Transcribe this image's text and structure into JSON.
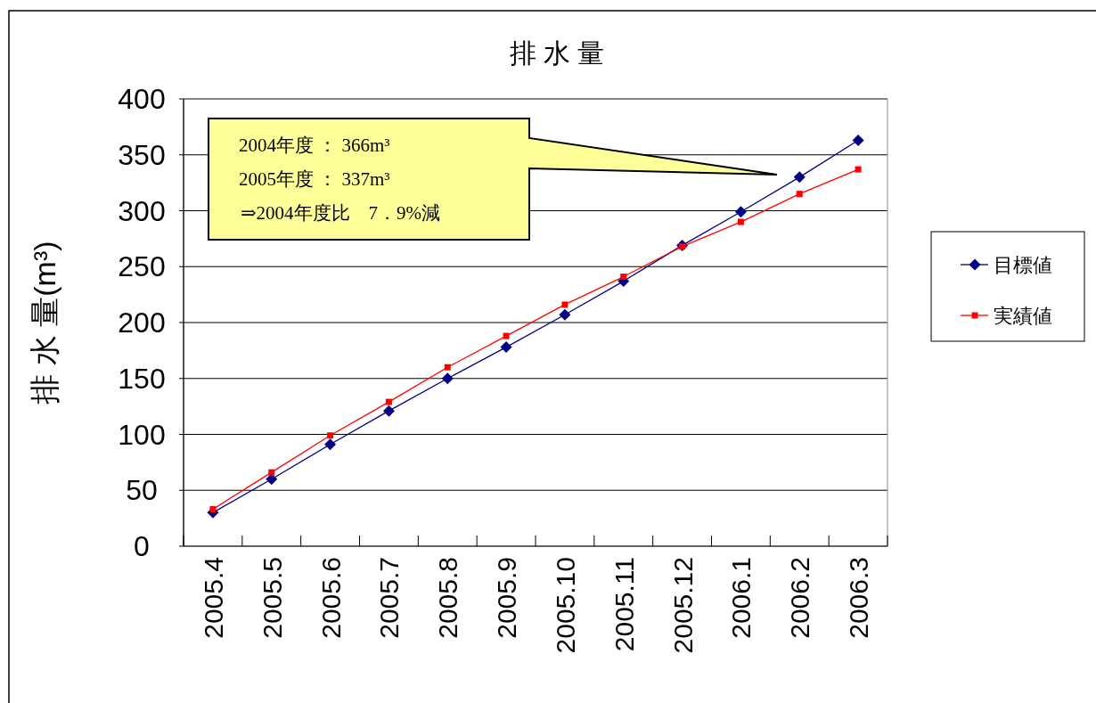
{
  "chart_data": {
    "type": "line",
    "title": "排 水 量",
    "ylabel": "排 水 量(m³)",
    "categories": [
      "2005.4",
      "2005.5",
      "2005.6",
      "2005.7",
      "2005.8",
      "2005.9",
      "2005.10",
      "2005.11",
      "2005.12",
      "2006.1",
      "2006.2",
      "2006.3"
    ],
    "series": [
      {
        "name": "目標値",
        "color": "#000080",
        "marker": "diamond",
        "values": [
          30,
          60,
          91,
          121,
          150,
          178,
          207,
          237,
          269,
          299,
          330,
          363
        ]
      },
      {
        "name": "実績値",
        "color": "#ff0000",
        "marker": "square",
        "values": [
          33,
          66,
          99,
          129,
          160,
          188,
          216,
          241,
          268,
          290,
          315,
          337
        ]
      }
    ],
    "ylim": [
      0,
      400
    ],
    "yticks": [
      0,
      50,
      100,
      150,
      200,
      250,
      300,
      350,
      400
    ],
    "grid": "y",
    "legend": "right",
    "annotations": [
      "2004年度 ： 366m³",
      "2005年度 ： 337m³",
      "⇒2004年度比　7．9%減"
    ]
  }
}
